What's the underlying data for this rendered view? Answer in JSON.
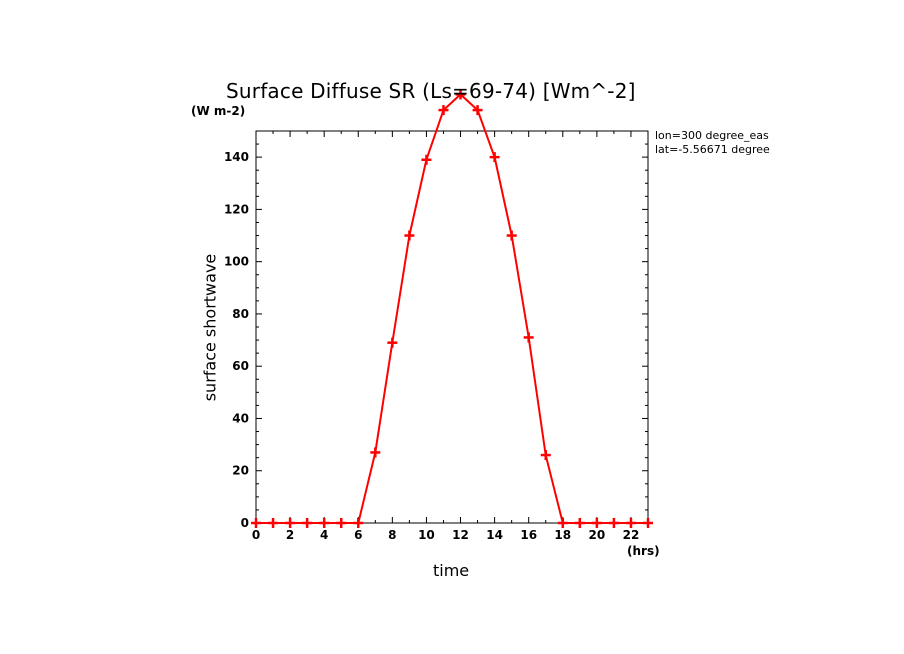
{
  "chart_data": {
    "type": "line",
    "title": "Surface Diffuse SR (Ls=69-74) [Wm^-2]",
    "xlabel": "time",
    "ylabel": "surface shortwave",
    "x_unit": "(hrs)",
    "y_unit": "(W m-2)",
    "xlim": [
      0,
      23
    ],
    "ylim": [
      0,
      150
    ],
    "x_ticks": [
      "0",
      "2",
      "4",
      "6",
      "8",
      "10",
      "12",
      "14",
      "16",
      "18",
      "20",
      "22"
    ],
    "y_ticks": [
      "0",
      "20",
      "40",
      "60",
      "80",
      "100",
      "120",
      "140"
    ],
    "annotations": [
      "lon=300 degree_eas",
      "lat=-5.56671 degree"
    ],
    "series": [
      {
        "color": "#ff0000",
        "marker": "plus",
        "x": [
          0,
          1,
          2,
          3,
          4,
          5,
          6,
          7,
          8,
          9,
          10,
          11,
          12,
          13,
          14,
          15,
          16,
          17,
          18,
          19,
          20,
          21,
          22,
          23
        ],
        "values": [
          0,
          0,
          0,
          0,
          0,
          0,
          0,
          27,
          69,
          110,
          139,
          158,
          164,
          158,
          140,
          110,
          71,
          26,
          0,
          0,
          0,
          0,
          0,
          0
        ]
      }
    ]
  }
}
